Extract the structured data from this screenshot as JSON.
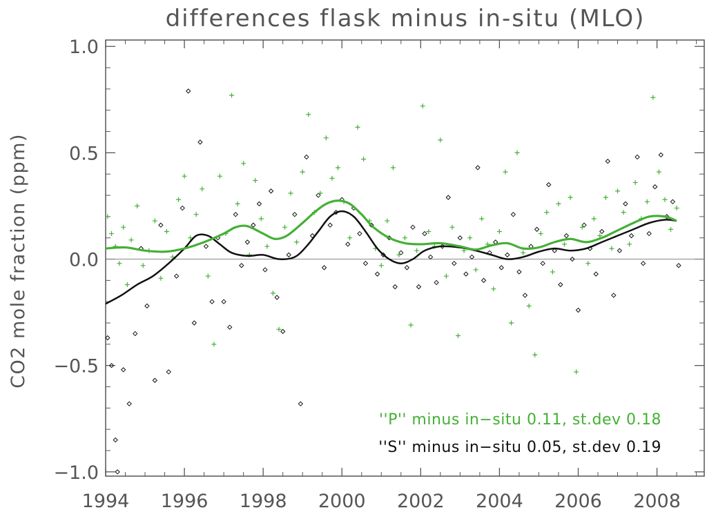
{
  "chart_data": {
    "type": "scatter",
    "title": "differences flask minus in-situ (MLO)",
    "ylabel": "CO2 mole fraction (ppm)",
    "xlabel": "",
    "xlim": [
      1994,
      2009.2
    ],
    "ylim": [
      -1.02,
      1.03
    ],
    "x_ticks": [
      "1994",
      "1996",
      "1998",
      "2000",
      "2002",
      "2004",
      "2006",
      "2008"
    ],
    "y_ticks": [
      "1.0",
      "0.5",
      "0.0",
      "−0.5",
      "−1.0"
    ],
    "zero_line": true,
    "grid": false,
    "legend_position": "bottom-right",
    "colors": {
      "P": "#44b035",
      "S": "#111111",
      "axis": "#555555"
    },
    "legend": [
      {
        "text": "''P'' minus in−situ 0.11, st.dev 0.18",
        "color": "#44b035"
      },
      {
        "text": "''S'' minus in−situ 0.05, st.dev 0.19",
        "color": "#111111"
      }
    ],
    "series": [
      {
        "name": "''P'' minus in−situ 0.11, st.dev 0.18",
        "marker": "plus",
        "color": "#44b035",
        "smooth_curve": [
          [
            1994.0,
            0.05
          ],
          [
            1994.5,
            0.055
          ],
          [
            1995.0,
            0.04
          ],
          [
            1995.5,
            0.035
          ],
          [
            1996.0,
            0.05
          ],
          [
            1996.5,
            0.08
          ],
          [
            1997.0,
            0.12
          ],
          [
            1997.3,
            0.15
          ],
          [
            1997.6,
            0.155
          ],
          [
            1998.0,
            0.12
          ],
          [
            1998.3,
            0.095
          ],
          [
            1998.6,
            0.11
          ],
          [
            1999.0,
            0.17
          ],
          [
            1999.3,
            0.22
          ],
          [
            1999.6,
            0.26
          ],
          [
            1999.9,
            0.275
          ],
          [
            2000.2,
            0.26
          ],
          [
            2000.5,
            0.21
          ],
          [
            2000.8,
            0.15
          ],
          [
            2001.2,
            0.1
          ],
          [
            2001.6,
            0.075
          ],
          [
            2002.0,
            0.07
          ],
          [
            2002.5,
            0.075
          ],
          [
            2003.0,
            0.06
          ],
          [
            2003.4,
            0.045
          ],
          [
            2003.8,
            0.065
          ],
          [
            2004.2,
            0.075
          ],
          [
            2004.6,
            0.05
          ],
          [
            2005.0,
            0.055
          ],
          [
            2005.4,
            0.08
          ],
          [
            2005.8,
            0.095
          ],
          [
            2006.2,
            0.08
          ],
          [
            2006.6,
            0.1
          ],
          [
            2007.0,
            0.135
          ],
          [
            2007.4,
            0.17
          ],
          [
            2007.8,
            0.2
          ],
          [
            2008.2,
            0.2
          ],
          [
            2008.5,
            0.18
          ]
        ],
        "points": [
          [
            1994.05,
            0.2
          ],
          [
            1994.15,
            0.12
          ],
          [
            1994.25,
            0.06
          ],
          [
            1994.35,
            -0.02
          ],
          [
            1994.45,
            0.15
          ],
          [
            1994.55,
            -0.12
          ],
          [
            1994.65,
            0.09
          ],
          [
            1994.8,
            0.25
          ],
          [
            1994.95,
            -0.03
          ],
          [
            1995.1,
            0.04
          ],
          [
            1995.25,
            0.18
          ],
          [
            1995.4,
            -0.09
          ],
          [
            1995.55,
            0.13
          ],
          [
            1995.7,
            0.01
          ],
          [
            1995.85,
            0.28
          ],
          [
            1996.0,
            0.39
          ],
          [
            1996.15,
            0.1
          ],
          [
            1996.3,
            0.21
          ],
          [
            1996.45,
            0.33
          ],
          [
            1996.6,
            -0.08
          ],
          [
            1996.75,
            -0.4
          ],
          [
            1996.9,
            0.39
          ],
          [
            1997.05,
            0.12
          ],
          [
            1997.2,
            0.77
          ],
          [
            1997.35,
            0.26
          ],
          [
            1997.5,
            0.45
          ],
          [
            1997.65,
            0.02
          ],
          [
            1997.8,
            0.37
          ],
          [
            1997.95,
            0.19
          ],
          [
            1998.1,
            0.06
          ],
          [
            1998.25,
            -0.16
          ],
          [
            1998.4,
            -0.33
          ],
          [
            1998.55,
            0.15
          ],
          [
            1998.7,
            0.31
          ],
          [
            1998.85,
            0.08
          ],
          [
            1999.0,
            0.41
          ],
          [
            1999.15,
            0.68
          ],
          [
            1999.3,
            0.22
          ],
          [
            1999.45,
            0.31
          ],
          [
            1999.6,
            0.57
          ],
          [
            1999.75,
            0.38
          ],
          [
            1999.9,
            0.43
          ],
          [
            2000.05,
            0.27
          ],
          [
            2000.2,
            0.1
          ],
          [
            2000.4,
            0.62
          ],
          [
            2000.55,
            0.47
          ],
          [
            2000.7,
            0.18
          ],
          [
            2000.85,
            0.05
          ],
          [
            2001.0,
            -0.03
          ],
          [
            2001.15,
            0.18
          ],
          [
            2001.3,
            0.43
          ],
          [
            2001.45,
            0.02
          ],
          [
            2001.6,
            0.1
          ],
          [
            2001.75,
            -0.31
          ],
          [
            2001.9,
            0.04
          ],
          [
            2002.05,
            0.72
          ],
          [
            2002.2,
            0.13
          ],
          [
            2002.35,
            0.06
          ],
          [
            2002.5,
            0.56
          ],
          [
            2002.65,
            -0.08
          ],
          [
            2002.8,
            0.15
          ],
          [
            2002.95,
            -0.36
          ],
          [
            2003.1,
            0.04
          ],
          [
            2003.25,
            0.1
          ],
          [
            2003.4,
            -0.05
          ],
          [
            2003.55,
            0.19
          ],
          [
            2003.7,
            0.07
          ],
          [
            2003.85,
            -0.14
          ],
          [
            2004.0,
            0.13
          ],
          [
            2004.15,
            0.41
          ],
          [
            2004.3,
            -0.3
          ],
          [
            2004.45,
            0.5
          ],
          [
            2004.6,
            0.03
          ],
          [
            2004.75,
            -0.22
          ],
          [
            2004.9,
            -0.45
          ],
          [
            2005.05,
            0.12
          ],
          [
            2005.2,
            0.22
          ],
          [
            2005.35,
            -0.06
          ],
          [
            2005.5,
            0.26
          ],
          [
            2005.65,
            0.07
          ],
          [
            2005.8,
            0.29
          ],
          [
            2005.95,
            -0.53
          ],
          [
            2006.1,
            0.15
          ],
          [
            2006.25,
            -0.02
          ],
          [
            2006.4,
            0.19
          ],
          [
            2006.55,
            0.11
          ],
          [
            2006.7,
            0.29
          ],
          [
            2006.85,
            0.05
          ],
          [
            2007.0,
            0.32
          ],
          [
            2007.15,
            0.22
          ],
          [
            2007.3,
            0.07
          ],
          [
            2007.45,
            0.36
          ],
          [
            2007.6,
            0.19
          ],
          [
            2007.75,
            0.27
          ],
          [
            2007.9,
            0.76
          ],
          [
            2008.05,
            0.41
          ],
          [
            2008.2,
            0.28
          ],
          [
            2008.35,
            0.14
          ],
          [
            2008.5,
            0.24
          ]
        ]
      },
      {
        "name": "''S'' minus in−situ 0.05, st.dev 0.19",
        "marker": "diamond",
        "color": "#111111",
        "smooth_curve": [
          [
            1994.0,
            -0.21
          ],
          [
            1994.4,
            -0.17
          ],
          [
            1994.8,
            -0.12
          ],
          [
            1995.2,
            -0.08
          ],
          [
            1995.6,
            -0.02
          ],
          [
            1996.0,
            0.05
          ],
          [
            1996.3,
            0.11
          ],
          [
            1996.6,
            0.11
          ],
          [
            1996.9,
            0.07
          ],
          [
            1997.2,
            0.03
          ],
          [
            1997.6,
            0.015
          ],
          [
            1998.0,
            0.02
          ],
          [
            1998.4,
            0.0
          ],
          [
            1998.8,
            0.01
          ],
          [
            1999.1,
            0.06
          ],
          [
            1999.4,
            0.13
          ],
          [
            1999.7,
            0.2
          ],
          [
            2000.0,
            0.225
          ],
          [
            2000.3,
            0.2
          ],
          [
            2000.6,
            0.13
          ],
          [
            2000.9,
            0.05
          ],
          [
            2001.2,
            0.0
          ],
          [
            2001.5,
            -0.02
          ],
          [
            2001.8,
            0.0
          ],
          [
            2002.1,
            0.04
          ],
          [
            2002.5,
            0.06
          ],
          [
            2003.0,
            0.055
          ],
          [
            2003.4,
            0.04
          ],
          [
            2003.8,
            0.02
          ],
          [
            2004.2,
            0.0
          ],
          [
            2004.6,
            0.01
          ],
          [
            2005.0,
            0.035
          ],
          [
            2005.4,
            0.05
          ],
          [
            2005.8,
            0.04
          ],
          [
            2006.2,
            0.05
          ],
          [
            2006.6,
            0.08
          ],
          [
            2007.0,
            0.11
          ],
          [
            2007.4,
            0.14
          ],
          [
            2007.8,
            0.17
          ],
          [
            2008.2,
            0.185
          ],
          [
            2008.5,
            0.18
          ]
        ],
        "points": [
          [
            1994.05,
            -0.37
          ],
          [
            1994.15,
            -0.5
          ],
          [
            1994.25,
            -0.85
          ],
          [
            1994.3,
            -1.0
          ],
          [
            1994.45,
            -0.52
          ],
          [
            1994.6,
            -0.68
          ],
          [
            1994.75,
            -0.35
          ],
          [
            1994.9,
            0.05
          ],
          [
            1995.05,
            -0.22
          ],
          [
            1995.25,
            -0.57
          ],
          [
            1995.4,
            0.16
          ],
          [
            1995.6,
            -0.53
          ],
          [
            1995.8,
            -0.08
          ],
          [
            1995.95,
            0.24
          ],
          [
            1996.1,
            0.79
          ],
          [
            1996.25,
            -0.3
          ],
          [
            1996.4,
            0.55
          ],
          [
            1996.55,
            0.06
          ],
          [
            1996.7,
            -0.2
          ],
          [
            1996.85,
            0.1
          ],
          [
            1997.0,
            -0.2
          ],
          [
            1997.15,
            -0.32
          ],
          [
            1997.3,
            0.21
          ],
          [
            1997.45,
            -0.03
          ],
          [
            1997.6,
            0.08
          ],
          [
            1997.75,
            0.16
          ],
          [
            1997.9,
            0.26
          ],
          [
            1998.05,
            -0.05
          ],
          [
            1998.2,
            0.32
          ],
          [
            1998.35,
            -0.18
          ],
          [
            1998.5,
            -0.34
          ],
          [
            1998.65,
            0.02
          ],
          [
            1998.8,
            0.21
          ],
          [
            1998.95,
            -0.68
          ],
          [
            1999.1,
            0.48
          ],
          [
            1999.25,
            0.11
          ],
          [
            1999.4,
            0.3
          ],
          [
            1999.55,
            -0.04
          ],
          [
            1999.7,
            0.16
          ],
          [
            1999.85,
            0.22
          ],
          [
            2000.0,
            0.28
          ],
          [
            2000.15,
            0.07
          ],
          [
            2000.3,
            0.24
          ],
          [
            2000.45,
            0.12
          ],
          [
            2000.6,
            -0.02
          ],
          [
            2000.75,
            0.16
          ],
          [
            2000.9,
            -0.07
          ],
          [
            2001.05,
            0.02
          ],
          [
            2001.2,
            0.1
          ],
          [
            2001.35,
            -0.13
          ],
          [
            2001.5,
            0.03
          ],
          [
            2001.65,
            -0.04
          ],
          [
            2001.8,
            0.15
          ],
          [
            2001.95,
            -0.13
          ],
          [
            2002.1,
            0.12
          ],
          [
            2002.25,
            0.01
          ],
          [
            2002.4,
            -0.11
          ],
          [
            2002.55,
            0.06
          ],
          [
            2002.7,
            0.29
          ],
          [
            2002.85,
            -0.02
          ],
          [
            2003.0,
            0.1
          ],
          [
            2003.15,
            -0.07
          ],
          [
            2003.3,
            0.01
          ],
          [
            2003.45,
            0.43
          ],
          [
            2003.6,
            -0.1
          ],
          [
            2003.75,
            0.03
          ],
          [
            2003.9,
            0.08
          ],
          [
            2004.05,
            -0.04
          ],
          [
            2004.2,
            0.02
          ],
          [
            2004.35,
            0.21
          ],
          [
            2004.5,
            -0.06
          ],
          [
            2004.65,
            -0.17
          ],
          [
            2004.8,
            0.06
          ],
          [
            2004.95,
            0.14
          ],
          [
            2005.1,
            -0.02
          ],
          [
            2005.25,
            0.35
          ],
          [
            2005.4,
            0.04
          ],
          [
            2005.55,
            -0.12
          ],
          [
            2005.7,
            0.11
          ],
          [
            2005.85,
            0.0
          ],
          [
            2006.0,
            -0.24
          ],
          [
            2006.15,
            0.16
          ],
          [
            2006.3,
            0.05
          ],
          [
            2006.45,
            -0.07
          ],
          [
            2006.6,
            0.13
          ],
          [
            2006.75,
            0.46
          ],
          [
            2006.9,
            -0.17
          ],
          [
            2007.05,
            0.04
          ],
          [
            2007.2,
            0.26
          ],
          [
            2007.35,
            0.11
          ],
          [
            2007.5,
            0.48
          ],
          [
            2007.65,
            -0.02
          ],
          [
            2007.8,
            0.12
          ],
          [
            2007.95,
            0.34
          ],
          [
            2008.1,
            0.49
          ],
          [
            2008.25,
            0.2
          ],
          [
            2008.4,
            0.27
          ],
          [
            2008.55,
            -0.03
          ]
        ]
      }
    ]
  }
}
